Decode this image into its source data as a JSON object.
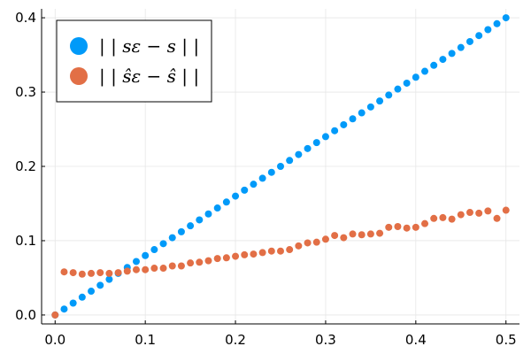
{
  "chart_data": {
    "type": "scatter",
    "title": "",
    "xlabel": "",
    "ylabel": "",
    "xlim": [
      -0.015,
      0.515
    ],
    "ylim": [
      -0.012,
      0.412
    ],
    "xticks": [
      0.0,
      0.1,
      0.2,
      0.3,
      0.4,
      0.5
    ],
    "xtick_labels": [
      "0.0",
      "0.1",
      "0.2",
      "0.3",
      "0.4",
      "0.5"
    ],
    "yticks": [
      0.0,
      0.1,
      0.2,
      0.3,
      0.4
    ],
    "ytick_labels": [
      "0.0",
      "0.1",
      "0.2",
      "0.3",
      "0.4"
    ],
    "grid": true,
    "legend_position": "top-left",
    "series": [
      {
        "name": "| | s_ε − s | |",
        "legend_text": "| | sε − s | |",
        "color": "#009af9",
        "x": [
          0.0,
          0.01,
          0.02,
          0.03,
          0.04,
          0.05,
          0.06,
          0.07,
          0.08,
          0.09,
          0.1,
          0.11,
          0.12,
          0.13,
          0.14,
          0.15,
          0.16,
          0.17,
          0.18,
          0.19,
          0.2,
          0.21,
          0.22,
          0.23,
          0.24,
          0.25,
          0.26,
          0.27,
          0.28,
          0.29,
          0.3,
          0.31,
          0.32,
          0.33,
          0.34,
          0.35,
          0.36,
          0.37,
          0.38,
          0.39,
          0.4,
          0.41,
          0.42,
          0.43,
          0.44,
          0.45,
          0.46,
          0.47,
          0.48,
          0.49,
          0.5
        ],
        "y": [
          0.0,
          0.008,
          0.016,
          0.024,
          0.032,
          0.04,
          0.048,
          0.056,
          0.064,
          0.072,
          0.08,
          0.088,
          0.096,
          0.104,
          0.112,
          0.12,
          0.128,
          0.136,
          0.144,
          0.152,
          0.16,
          0.168,
          0.176,
          0.184,
          0.192,
          0.2,
          0.208,
          0.216,
          0.224,
          0.232,
          0.24,
          0.248,
          0.256,
          0.264,
          0.272,
          0.28,
          0.288,
          0.296,
          0.304,
          0.312,
          0.32,
          0.328,
          0.336,
          0.344,
          0.352,
          0.36,
          0.368,
          0.376,
          0.384,
          0.392,
          0.4
        ]
      },
      {
        "name": "| | ŝ_ε − ŝ | |",
        "legend_text": "| | ŝε − ŝ | |",
        "color": "#e26f46",
        "x": [
          0.0,
          0.01,
          0.02,
          0.03,
          0.04,
          0.05,
          0.06,
          0.07,
          0.08,
          0.09,
          0.1,
          0.11,
          0.12,
          0.13,
          0.14,
          0.15,
          0.16,
          0.17,
          0.18,
          0.19,
          0.2,
          0.21,
          0.22,
          0.23,
          0.24,
          0.25,
          0.26,
          0.27,
          0.28,
          0.29,
          0.3,
          0.31,
          0.32,
          0.33,
          0.34,
          0.35,
          0.36,
          0.37,
          0.38,
          0.39,
          0.4,
          0.41,
          0.42,
          0.43,
          0.44,
          0.45,
          0.46,
          0.47,
          0.48,
          0.49,
          0.5
        ],
        "y": [
          0.0,
          0.058,
          0.057,
          0.055,
          0.056,
          0.057,
          0.056,
          0.057,
          0.059,
          0.061,
          0.061,
          0.063,
          0.063,
          0.066,
          0.066,
          0.07,
          0.071,
          0.073,
          0.076,
          0.077,
          0.079,
          0.081,
          0.082,
          0.084,
          0.086,
          0.086,
          0.088,
          0.093,
          0.097,
          0.098,
          0.102,
          0.107,
          0.104,
          0.109,
          0.108,
          0.109,
          0.11,
          0.118,
          0.119,
          0.117,
          0.118,
          0.123,
          0.13,
          0.131,
          0.129,
          0.135,
          0.138,
          0.137,
          0.14,
          0.13,
          0.141
        ]
      }
    ]
  }
}
